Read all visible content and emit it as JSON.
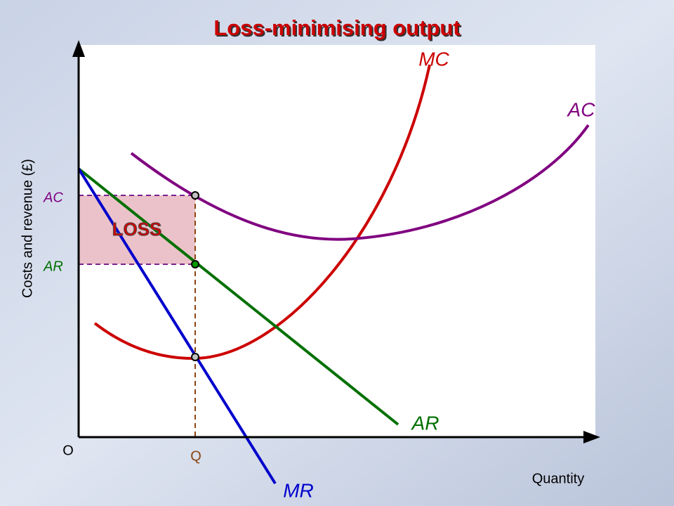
{
  "title": "Loss-minimising output",
  "curves": {
    "mc": "MC",
    "ac": "AC",
    "ar": "AR",
    "mr": "MR"
  },
  "axis": {
    "y_label": "Costs and revenue (£)",
    "x_label": "Quantity",
    "origin": "O",
    "q": "Q",
    "ac_level": "AC",
    "ar_level": "AR"
  },
  "area": {
    "label": "LOSS"
  }
}
